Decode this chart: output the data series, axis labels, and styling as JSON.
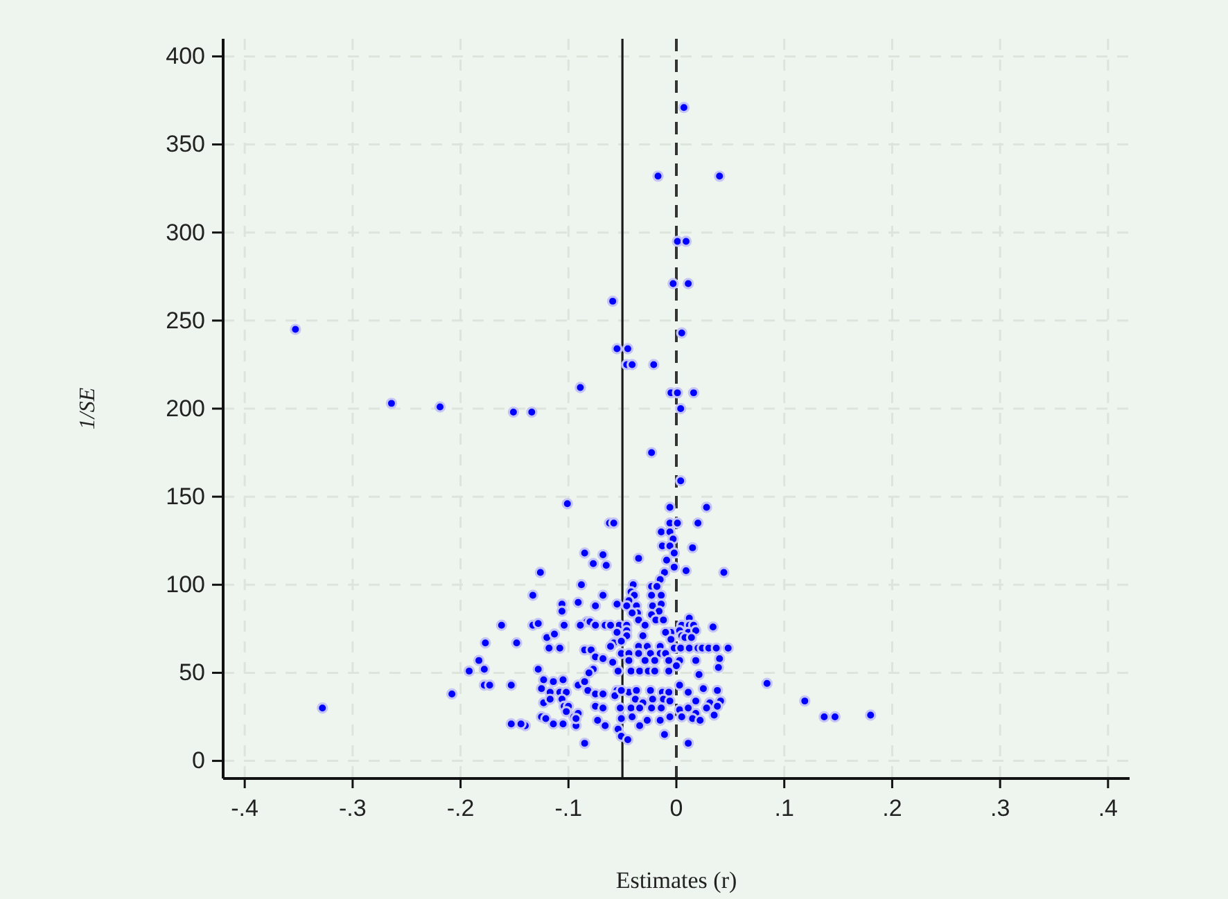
{
  "chart_data": {
    "type": "scatter",
    "xlabel": "Estimates (r)",
    "ylabel": "1/SE",
    "color": "#0000ff",
    "marker": "circle",
    "grid": true,
    "xlim": [
      -0.42,
      0.42
    ],
    "ylim": [
      -10,
      410
    ],
    "xticks": [
      {
        "value": -0.4,
        "label": "-.4"
      },
      {
        "value": -0.3,
        "label": "-.3"
      },
      {
        "value": -0.2,
        "label": "-.2"
      },
      {
        "value": -0.1,
        "label": "-.1"
      },
      0,
      {
        "value": 0.1,
        "label": ".1"
      },
      {
        "value": 0.2,
        "label": ".2"
      },
      {
        "value": 0.3,
        "label": ".3"
      },
      {
        "value": 0.4,
        "label": ".4"
      }
    ],
    "yticks": [
      0,
      50,
      100,
      150,
      200,
      250,
      300,
      350,
      400
    ],
    "ref_lines": [
      {
        "axis": "x",
        "value": -0.05,
        "line_style": "solid",
        "color": "#1a1a1a"
      },
      {
        "axis": "x",
        "value": 0,
        "line_style": "dashed",
        "color": "#333333"
      }
    ],
    "x": [
      0.007,
      -0.017,
      0.04,
      0.001,
      0.009,
      -0.003,
      0.011,
      -0.059,
      -0.353,
      0.005,
      -0.055,
      -0.045,
      -0.046,
      -0.041,
      -0.021,
      -0.089,
      -0.005,
      0.001,
      0.016,
      -0.264,
      -0.219,
      0.004,
      -0.151,
      -0.134,
      -0.023,
      0.004,
      -0.101,
      -0.006,
      0.028,
      -0.062,
      -0.058,
      -0.006,
      0.001,
      0.02,
      -0.014,
      -0.006,
      -0.003,
      -0.013,
      -0.006,
      0.015,
      -0.085,
      -0.068,
      -0.002,
      -0.035,
      -0.077,
      -0.065,
      -0.009,
      -0.002,
      -0.011,
      0.009,
      0.044,
      -0.015,
      -0.126,
      -0.088,
      -0.04,
      -0.023,
      -0.018,
      -0.042,
      -0.039,
      -0.023,
      -0.014,
      -0.068,
      -0.133,
      -0.044,
      -0.091,
      -0.106,
      -0.075,
      -0.055,
      -0.046,
      -0.037,
      -0.022,
      -0.014,
      -0.106,
      -0.016,
      -0.036,
      -0.041,
      -0.023,
      -0.083,
      -0.08,
      -0.035,
      -0.019,
      -0.012,
      0.012,
      0.005,
      0.012,
      0.016,
      -0.053,
      -0.046,
      -0.029,
      -0.104,
      -0.089,
      -0.075,
      -0.066,
      -0.061,
      0.034,
      -0.162,
      -0.133,
      -0.128,
      -0.005,
      0.003,
      0.011,
      0.018,
      -0.055,
      -0.046,
      -0.01,
      -0.12,
      -0.113,
      -0.046,
      0.005,
      0.008,
      -0.005,
      0.014,
      -0.031,
      -0.058,
      -0.051,
      -0.108,
      -0.118,
      -0.085,
      -0.079,
      -0.061,
      -0.035,
      -0.027,
      -0.015,
      -0.002,
      0.004,
      0.012,
      0.02,
      0.024,
      0.03,
      0.037,
      0.048,
      -0.051,
      -0.044,
      -0.035,
      -0.024,
      -0.015,
      -0.01,
      -0.075,
      -0.068,
      -0.059,
      -0.044,
      -0.029,
      -0.02,
      -0.007,
      0.003,
      0.018,
      0.04,
      -0.077,
      -0.081,
      -0.054,
      -0.042,
      -0.034,
      -0.026,
      -0.02,
      -0.007,
      0,
      0.021,
      0.039,
      0.084,
      -0.177,
      -0.148,
      -0.183,
      -0.192,
      -0.178,
      -0.128,
      -0.123,
      -0.114,
      -0.178,
      -0.173,
      -0.153,
      -0.125,
      -0.117,
      -0.208,
      -0.123,
      -0.117,
      -0.328,
      -0.125,
      -0.153,
      -0.14,
      -0.144,
      -0.114,
      -0.105,
      -0.091,
      -0.085,
      -0.108,
      -0.102,
      -0.082,
      -0.075,
      -0.068,
      -0.055,
      -0.044,
      -0.037,
      -0.024,
      -0.013,
      -0.007,
      0.003,
      0.011,
      0.018,
      0.025,
      0.031,
      0.038,
      0.041,
      0.038,
      -0.106,
      -0.104,
      -0.1,
      -0.075,
      -0.057,
      -0.051,
      -0.038,
      -0.031,
      -0.022,
      -0.012,
      -0.006,
      -0.102,
      -0.095,
      -0.091,
      -0.068,
      -0.052,
      -0.042,
      -0.034,
      -0.023,
      -0.014,
      0.003,
      0.011,
      0.018,
      0.028,
      0.035,
      -0.006,
      0.005,
      0.015,
      0.022,
      -0.121,
      -0.105,
      -0.093,
      -0.093,
      -0.073,
      -0.066,
      -0.054,
      -0.051,
      -0.041,
      -0.034,
      -0.027,
      -0.015,
      -0.051,
      -0.045,
      -0.085,
      -0.011,
      0.011,
      0.119,
      0.137,
      0.147,
      0.18
    ],
    "values": [
      371,
      332,
      332,
      295,
      295,
      271,
      271,
      261,
      245,
      243,
      234,
      234,
      225,
      225,
      225,
      212,
      209,
      209,
      209,
      203,
      201,
      200,
      198,
      198,
      175,
      159,
      146,
      144,
      144,
      135,
      135,
      135,
      135,
      135,
      130,
      130,
      126,
      122,
      122,
      121,
      118,
      117,
      118,
      115,
      112,
      111,
      114,
      110,
      107,
      108,
      107,
      103,
      107,
      100,
      100,
      99,
      99,
      96,
      94,
      94,
      94,
      94,
      94,
      91,
      90,
      89,
      88,
      89,
      88,
      88,
      88,
      89,
      85,
      85,
      84,
      84,
      83,
      79,
      79,
      80,
      80,
      80,
      81,
      77,
      77,
      77,
      77,
      77,
      77,
      77,
      77,
      77,
      77,
      77,
      76,
      77,
      77,
      78,
      73,
      74,
      73,
      74,
      73,
      74,
      73,
      70,
      72,
      71,
      71,
      70,
      69,
      70,
      71,
      67,
      68,
      64,
      64,
      63,
      63,
      65,
      65,
      65,
      65,
      64,
      64,
      64,
      64,
      64,
      64,
      64,
      64,
      61,
      61,
      61,
      61,
      61,
      61,
      59,
      58,
      56,
      57,
      57,
      57,
      57,
      57,
      57,
      58,
      52,
      50,
      51,
      51,
      51,
      51,
      51,
      51,
      54,
      49,
      53,
      44,
      67,
      67,
      57,
      51,
      52,
      52,
      46,
      45,
      43,
      43,
      43,
      41,
      39,
      38,
      33,
      35,
      30,
      25,
      21,
      20,
      21,
      21,
      46,
      43,
      45,
      39,
      39,
      40,
      38,
      38,
      40,
      39,
      40,
      40,
      39,
      39,
      43,
      39,
      34,
      41,
      33,
      40,
      34,
      31,
      35,
      31,
      31,
      31,
      37,
      40,
      35,
      33,
      35,
      35,
      34,
      28,
      25,
      27,
      30,
      30,
      30,
      30,
      30,
      30,
      29,
      30,
      27,
      30,
      26,
      25,
      25,
      24,
      23,
      24,
      21,
      20,
      24,
      23,
      20,
      18,
      24,
      25,
      20,
      23,
      23,
      14,
      12,
      10,
      15,
      10,
      34,
      25,
      25,
      26
    ]
  }
}
